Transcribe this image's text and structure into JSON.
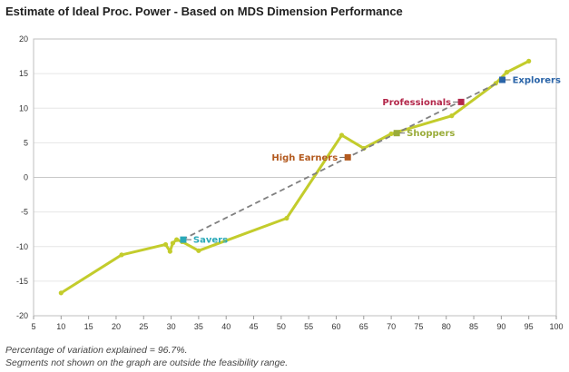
{
  "chart_data": {
    "type": "line",
    "title": "Estimate of Ideal Proc. Power - Based on MDS Dimension Performance",
    "xlabel": "",
    "ylabel": "",
    "xlim": [
      5,
      100
    ],
    "ylim": [
      -20,
      20
    ],
    "xticks": [
      5,
      10,
      15,
      20,
      25,
      30,
      35,
      40,
      45,
      50,
      55,
      60,
      65,
      70,
      75,
      80,
      85,
      90,
      95,
      100
    ],
    "yticks": [
      -20,
      -15,
      -10,
      -5,
      0,
      5,
      10,
      15,
      20
    ],
    "grid": true,
    "series": [
      {
        "name": "Ideal Proc. Power estimate",
        "style": "solid",
        "color": "#c3cc2c",
        "x": [
          10,
          21,
          29,
          29.8,
          30.3,
          31,
          32,
          35,
          51,
          61,
          65,
          70,
          81,
          89,
          91,
          95
        ],
        "y": [
          -16.7,
          -11.2,
          -9.7,
          -10.7,
          -9.5,
          -9.0,
          -9.3,
          -10.6,
          -5.9,
          6.1,
          4.2,
          6.3,
          8.9,
          13.6,
          15.2,
          16.8
        ]
      },
      {
        "name": "Fit",
        "style": "dashed",
        "color": "#808080",
        "x": [
          32,
          91
        ],
        "y": [
          -9.0,
          14.3
        ]
      }
    ],
    "segments": [
      {
        "name": "Savers",
        "x": 32.2,
        "y": -9.0,
        "color": "#2aa9b8",
        "label_side": "right"
      },
      {
        "name": "High Earners",
        "x": 62.1,
        "y": 2.9,
        "color": "#b35a1f",
        "label_side": "left"
      },
      {
        "name": "Shoppers",
        "x": 71,
        "y": 6.4,
        "color": "#9aac3a",
        "label_side": "right"
      },
      {
        "name": "Professionals",
        "x": 82.7,
        "y": 10.9,
        "color": "#b3274a",
        "label_side": "left"
      },
      {
        "name": "Explorers",
        "x": 90.2,
        "y": 14.1,
        "color": "#2a64a8",
        "label_side": "right"
      }
    ]
  },
  "footnotes": {
    "variation": "Percentage of variation explained = 96.7%.",
    "feasibility": "Segments not shown on the graph are outside the feasibility range."
  }
}
